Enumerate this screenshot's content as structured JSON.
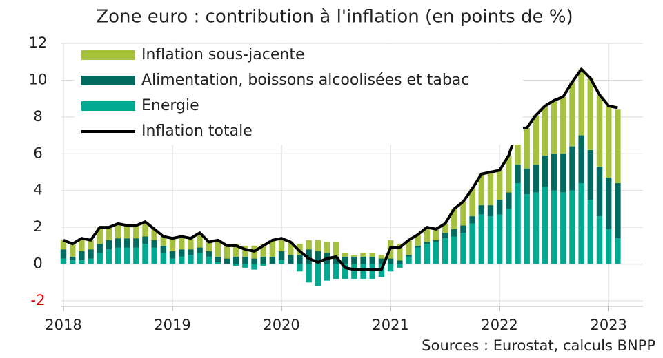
{
  "chart_data": {
    "type": "stacked_bar_line",
    "title": "Zone euro : contribution à l'inflation (en points de %)",
    "source": "Sources : Eurostat, calculs BNPP",
    "categories": [
      "2018",
      null,
      null,
      null,
      null,
      null,
      null,
      null,
      null,
      null,
      null,
      null,
      "2019",
      null,
      null,
      null,
      null,
      null,
      null,
      null,
      null,
      null,
      null,
      null,
      "2020",
      null,
      null,
      null,
      null,
      null,
      null,
      null,
      null,
      null,
      null,
      null,
      "2021",
      null,
      null,
      null,
      null,
      null,
      null,
      null,
      null,
      null,
      null,
      null,
      "2022",
      null,
      null,
      null,
      null,
      null,
      null,
      null,
      null,
      null,
      null,
      null,
      "2023",
      null
    ],
    "series": [
      {
        "name": "Inflation sous-jacente",
        "color": "#a6c040",
        "kind": "bar",
        "values": [
          0.5,
          0.7,
          0.7,
          0.5,
          0.9,
          0.7,
          0.8,
          0.7,
          0.7,
          0.8,
          0.6,
          0.5,
          0.7,
          0.7,
          0.6,
          0.8,
          0.5,
          0.9,
          0.7,
          0.7,
          0.6,
          0.7,
          0.7,
          0.9,
          0.7,
          0.7,
          0.6,
          0.5,
          0.6,
          0.6,
          0.8,
          0.2,
          0.1,
          0.2,
          0.2,
          0.2,
          1.0,
          0.9,
          0.8,
          0.6,
          0.8,
          0.6,
          0.5,
          1.1,
          1.3,
          1.5,
          1.7,
          1.8,
          1.6,
          2.0,
          2.0,
          2.2,
          2.7,
          2.7,
          2.9,
          3.1,
          3.5,
          3.6,
          3.9,
          3.9,
          3.9,
          4.0
        ]
      },
      {
        "name": "Alimentation, boissons alcoolisées et tabac",
        "color": "#006b5e",
        "kind": "bar",
        "values": [
          0.5,
          0.2,
          0.5,
          0.5,
          0.5,
          0.5,
          0.5,
          0.5,
          0.5,
          0.4,
          0.4,
          0.4,
          0.4,
          0.4,
          0.3,
          0.3,
          0.3,
          0.3,
          0.3,
          0.4,
          0.4,
          0.3,
          0.4,
          0.4,
          0.5,
          0.5,
          0.5,
          0.8,
          0.7,
          0.6,
          0.4,
          0.4,
          0.4,
          0.4,
          0.4,
          0.3,
          0.3,
          0.2,
          0.1,
          0.1,
          0.1,
          0.1,
          0.3,
          0.4,
          0.4,
          0.4,
          0.5,
          0.6,
          0.8,
          0.9,
          1.0,
          1.4,
          1.5,
          1.7,
          2.0,
          2.1,
          2.4,
          2.6,
          2.7,
          2.7,
          2.8,
          3.0
        ]
      },
      {
        "name": "Energie",
        "color": "#00a98f",
        "kind": "bar",
        "values": [
          0.3,
          0.2,
          0.2,
          0.3,
          0.6,
          0.8,
          0.9,
          0.9,
          0.9,
          1.1,
          0.9,
          0.6,
          0.3,
          0.4,
          0.5,
          0.6,
          0.4,
          0.1,
          0.0,
          -0.1,
          -0.2,
          -0.3,
          -0.1,
          0.0,
          0.2,
          0.0,
          -0.4,
          -1.0,
          -1.2,
          -0.9,
          -0.8,
          -0.8,
          -0.8,
          -0.8,
          -0.8,
          -0.7,
          -0.4,
          -0.2,
          0.4,
          0.9,
          1.1,
          1.2,
          1.4,
          1.5,
          1.7,
          2.2,
          2.7,
          2.6,
          2.7,
          3.0,
          4.4,
          3.8,
          3.9,
          4.2,
          4.0,
          3.9,
          4.0,
          4.4,
          3.5,
          2.6,
          1.9,
          1.4
        ]
      },
      {
        "name": "Inflation totale",
        "color": "#000000",
        "kind": "line",
        "values": [
          1.3,
          1.1,
          1.4,
          1.3,
          2.0,
          2.0,
          2.2,
          2.1,
          2.1,
          2.3,
          1.9,
          1.5,
          1.4,
          1.5,
          1.4,
          1.7,
          1.2,
          1.3,
          1.0,
          1.0,
          0.8,
          0.7,
          1.0,
          1.3,
          1.4,
          1.2,
          0.7,
          0.3,
          0.1,
          0.3,
          0.4,
          -0.2,
          -0.3,
          -0.3,
          -0.3,
          -0.3,
          0.9,
          0.9,
          1.3,
          1.6,
          2.0,
          1.9,
          2.2,
          3.0,
          3.4,
          4.1,
          4.9,
          5.0,
          5.1,
          5.9,
          7.4,
          7.4,
          8.1,
          8.6,
          8.9,
          9.1,
          9.9,
          10.6,
          10.1,
          9.2,
          8.6,
          8.5
        ]
      }
    ],
    "stack_order": [
      2,
      1,
      0
    ],
    "legend_order": [
      0,
      1,
      2,
      3
    ],
    "ylim": [
      -2,
      12
    ],
    "yticks": [
      -2,
      0,
      2,
      4,
      6,
      8,
      10,
      12
    ],
    "negative_tick_color": "#e00000",
    "grid": true,
    "legend": "upper left"
  }
}
